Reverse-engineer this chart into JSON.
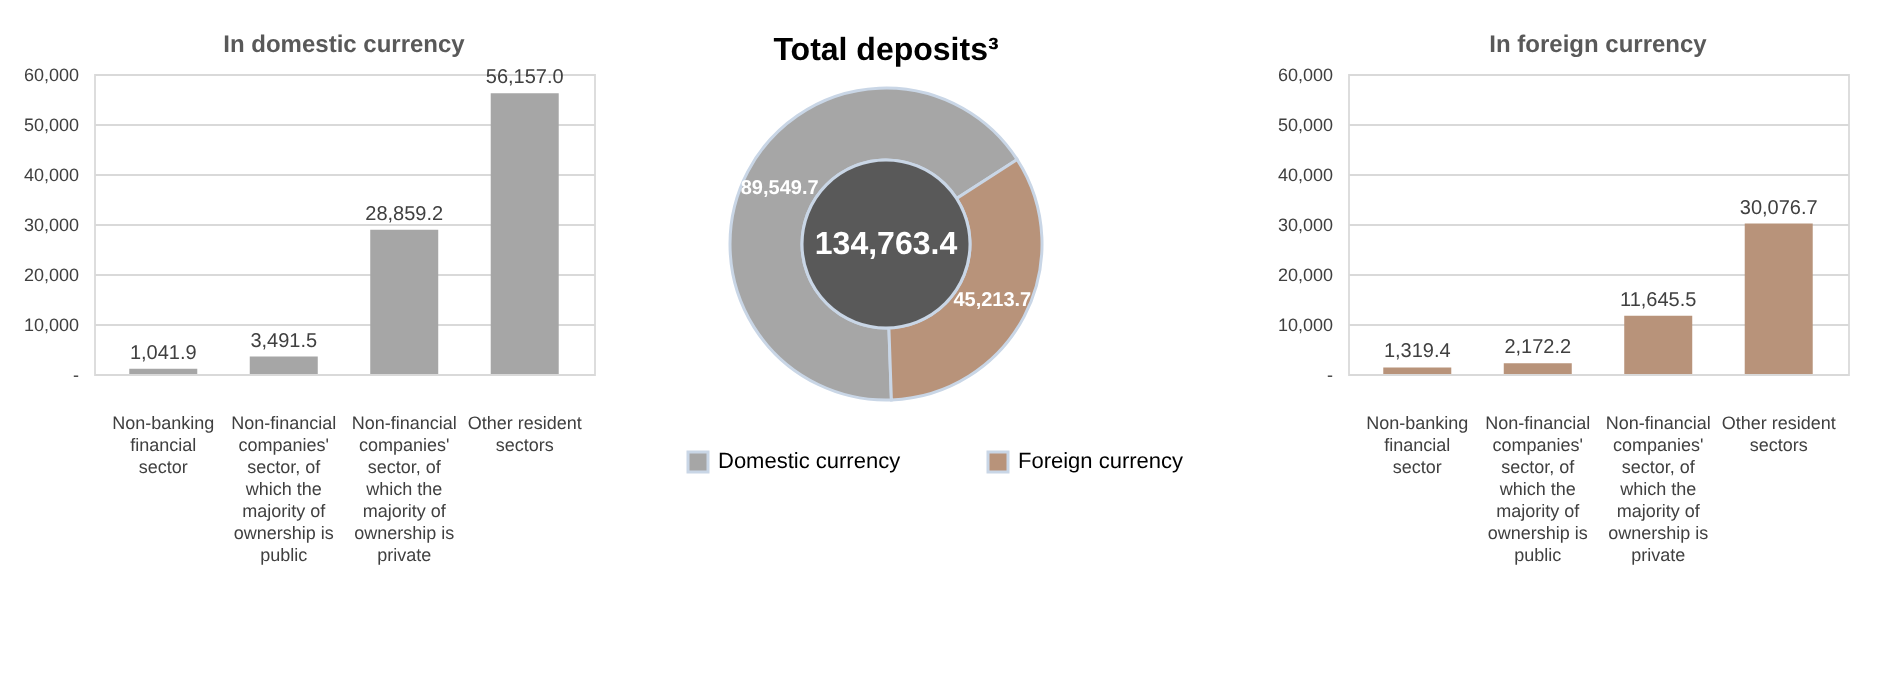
{
  "chart_data": [
    {
      "type": "bar",
      "title": "In domestic currency",
      "categories": [
        "Non-banking financial sector",
        "Non-financial companies' sector, of which the majority of ownership is public",
        "Non-financial companies' sector, of which the majority of ownership is private",
        "Other resident sectors"
      ],
      "values": [
        1041.9,
        3491.5,
        28859.2,
        56157.0
      ],
      "value_labels": [
        "1,041.9",
        "3,491.5",
        "28,859.2",
        "56,157.0"
      ],
      "color": "#a6a6a6",
      "ylim": [
        0,
        60000
      ],
      "yticks": [
        {
          "value": 0,
          "label": "-"
        },
        {
          "value": 10000,
          "label": "10,000"
        },
        {
          "value": 20000,
          "label": "20,000"
        },
        {
          "value": 30000,
          "label": "30,000"
        },
        {
          "value": 40000,
          "label": "40,000"
        },
        {
          "value": 50000,
          "label": "50,000"
        },
        {
          "value": 60000,
          "label": "60,000"
        }
      ],
      "grid": "y"
    },
    {
      "type": "donut",
      "title": "Total deposits³",
      "categories": [
        "Domestic currency",
        "Foreign currency"
      ],
      "values": [
        89549.7,
        45213.7
      ],
      "value_labels": [
        "89,549.7",
        "45,213.7"
      ],
      "colors": [
        "#a6a6a6",
        "#b8937a"
      ],
      "legend": "bottom",
      "annotations": [
        "134,763.4"
      ]
    },
    {
      "type": "bar",
      "title": "In foreign currency",
      "categories": [
        "Non-banking financial sector",
        "Non-financial companies' sector, of which the majority of ownership is public",
        "Non-financial companies' sector, of which the majority of ownership is private",
        "Other resident sectors"
      ],
      "values": [
        1319.4,
        2172.2,
        11645.5,
        30076.7
      ],
      "value_labels": [
        "1,319.4",
        "2,172.2",
        "11,645.5",
        "30,076.7"
      ],
      "color": "#b8937a",
      "ylim": [
        0,
        60000
      ],
      "yticks": [
        {
          "value": 0,
          "label": "-"
        },
        {
          "value": 10000,
          "label": "10,000"
        },
        {
          "value": 20000,
          "label": "20,000"
        },
        {
          "value": 30000,
          "label": "30,000"
        },
        {
          "value": 40000,
          "label": "40,000"
        },
        {
          "value": 50000,
          "label": "50,000"
        },
        {
          "value": 60000,
          "label": "60,000"
        }
      ],
      "grid": "y"
    }
  ]
}
